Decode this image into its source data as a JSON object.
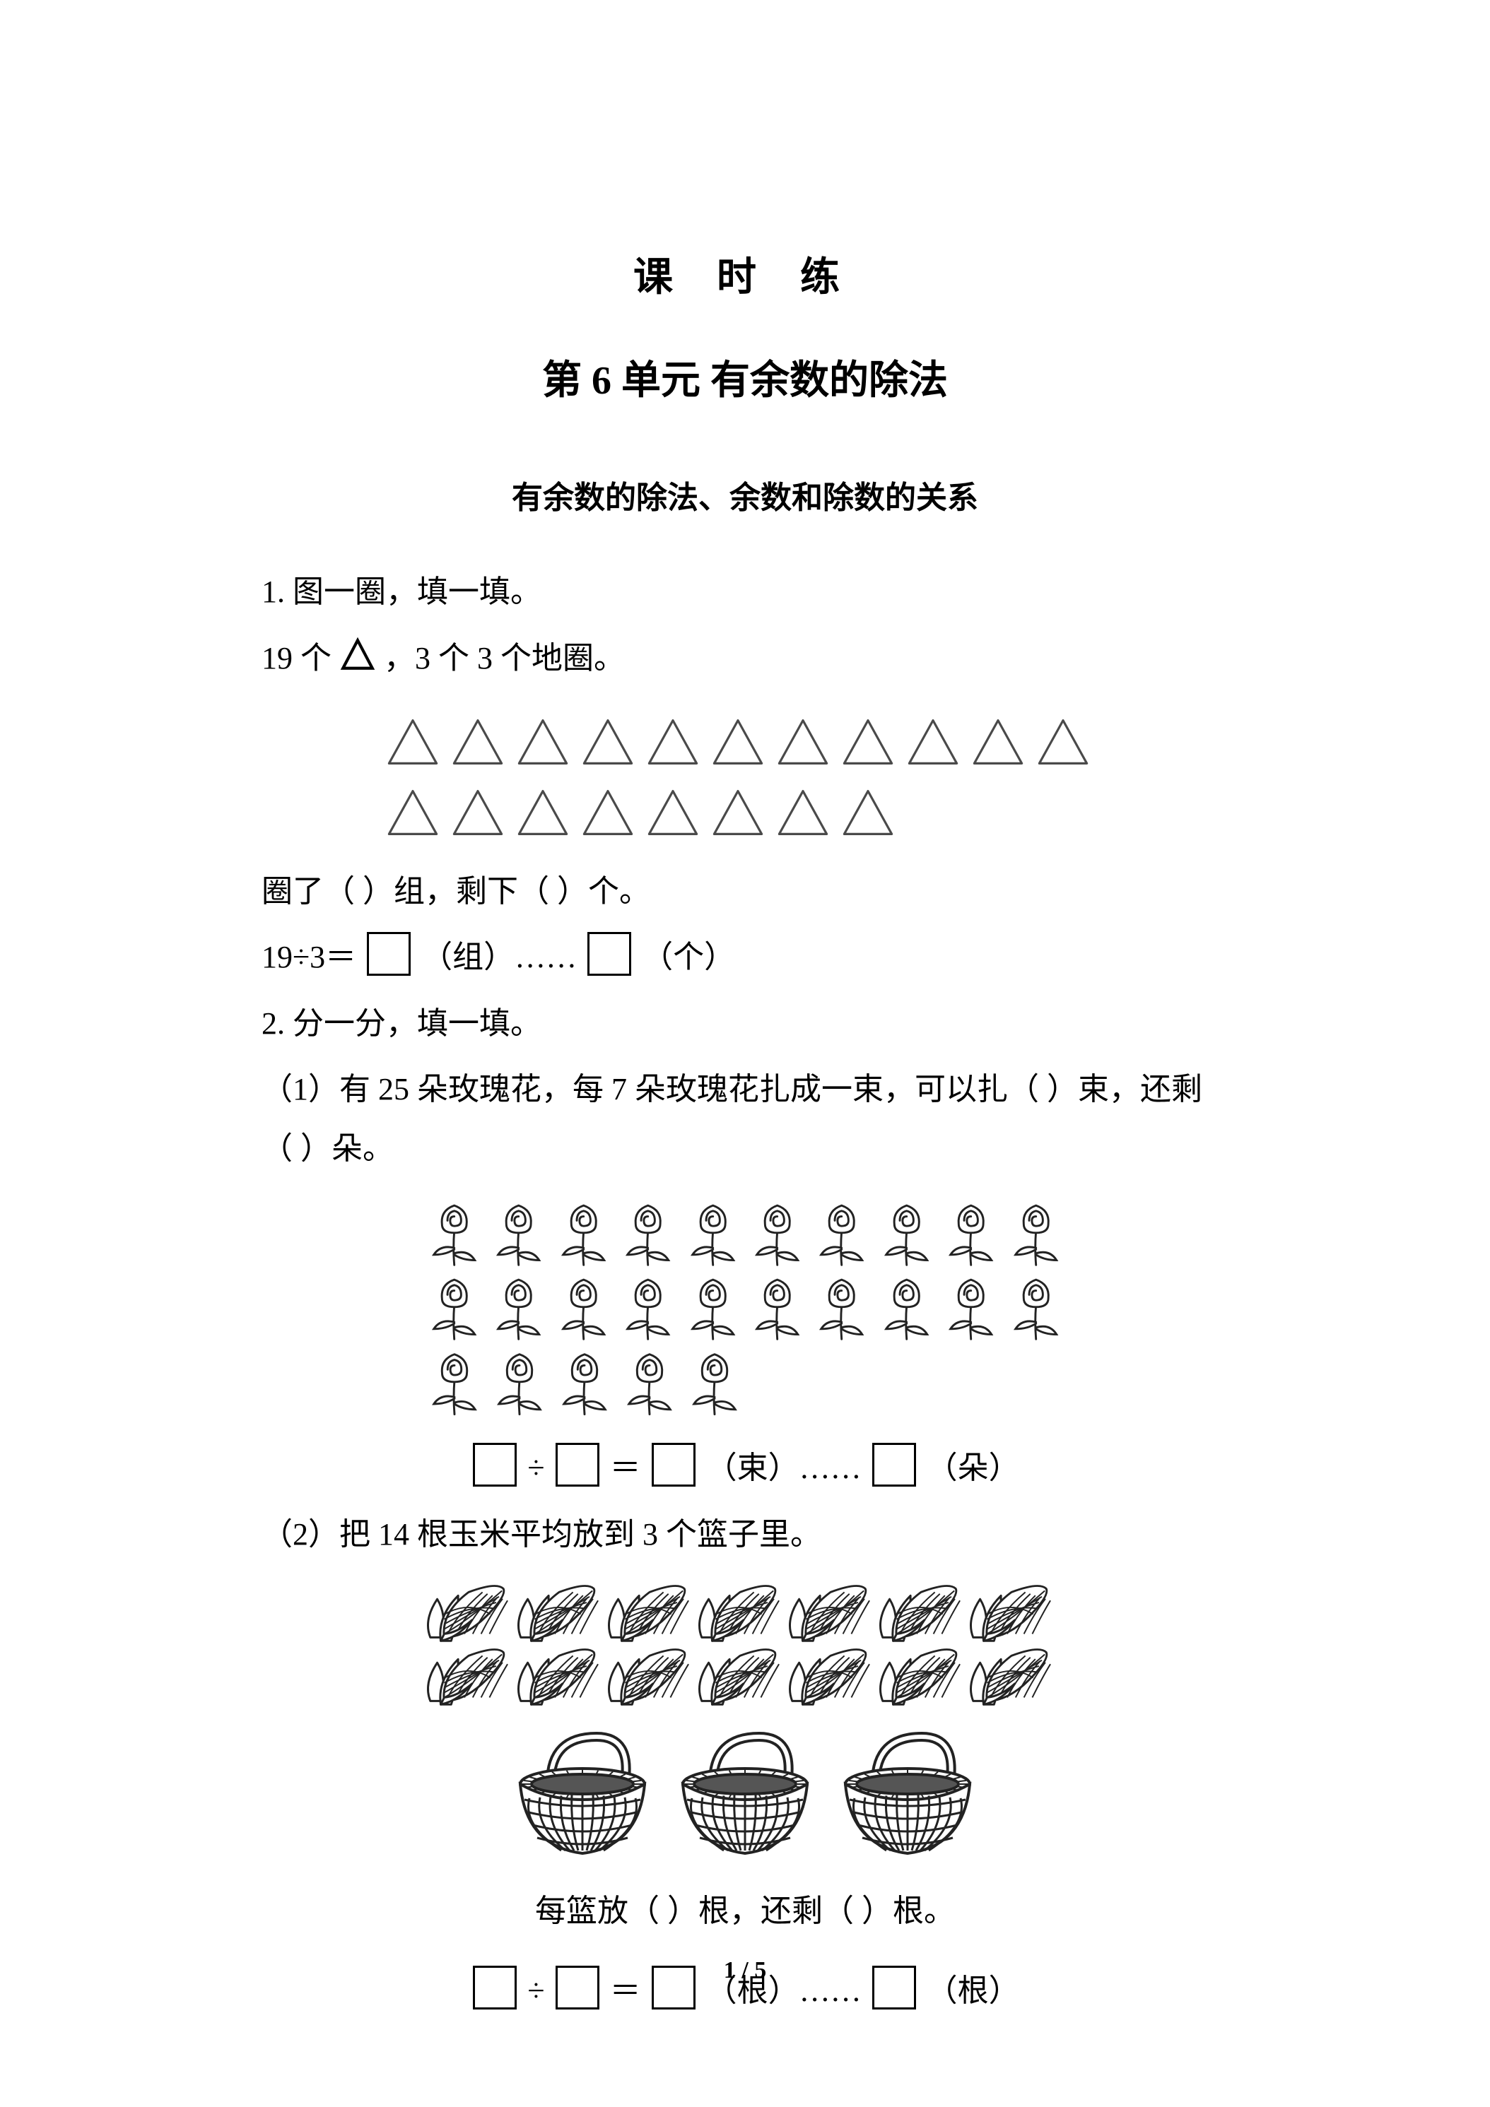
{
  "header": {
    "title_main": "课  时  练",
    "title_sub": "第 6 单元  有余数的除法",
    "title_topic": "有余数的除法、余数和除数的关系"
  },
  "q1": {
    "label": "1. 图一圈，填一填。",
    "desc_prefix": "19 个",
    "desc_suffix": "，3 个 3 个地圈。",
    "result_text": "圈了（    ）组，剩下（    ）个。",
    "eq_prefix": "19÷3＝",
    "eq_unit1": "（组）……",
    "eq_unit2": "（个）",
    "triangles": {
      "row1_count": 11,
      "row2_count": 8,
      "fill": "#ffffff",
      "stroke": "#4a4a4a",
      "stroke_width": 4,
      "size": 80
    }
  },
  "q2": {
    "label": "2. 分一分，填一填。",
    "p1": {
      "text": "（1）有 25 朵玫瑰花，每 7 朵玫瑰花扎成一束，可以扎（    ）束，还剩（    ）朵。",
      "roses": {
        "rows": [
          10,
          10,
          5
        ],
        "size": 78,
        "stroke": "#222222"
      },
      "eq_div": "÷",
      "eq_eq": "＝",
      "eq_unit1": "（束）……",
      "eq_unit2": "（朵）"
    },
    "p2": {
      "text": "（2）把 14 根玉米平均放到 3 个篮子里。",
      "corns": {
        "rows": [
          7,
          7
        ],
        "size": 128,
        "stroke": "#222222"
      },
      "baskets": {
        "count": 3,
        "size": 200,
        "stroke": "#222222"
      },
      "result_text": "每篮放（    ）根，还剩（    ）根。",
      "eq_div": "÷",
      "eq_eq": "＝",
      "eq_unit1": "（根）……",
      "eq_unit2": "（根）"
    }
  },
  "footer": {
    "page_indicator": "1 / 5"
  },
  "colors": {
    "background": "#ffffff",
    "text": "#000000",
    "box_border": "#000000"
  }
}
